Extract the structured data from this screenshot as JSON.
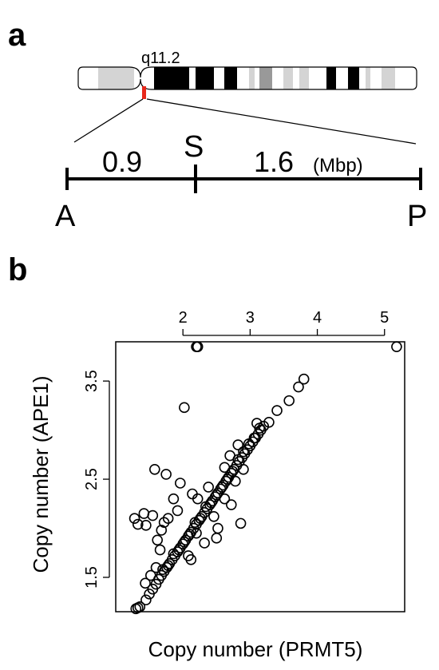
{
  "panel_a": {
    "letter": "a",
    "band_label": "q11.2",
    "segment_left": "0.9",
    "segment_right": "1.6",
    "unit": "(Mbp)",
    "mark_center": "S",
    "end_left": "A",
    "end_right": "P"
  },
  "panel_b": {
    "letter": "b"
  },
  "colors": {
    "highlight": "#e8281b",
    "band_black": "#000000",
    "band_gray": "#999999",
    "band_light": "#d4d4d4"
  },
  "chart_data": {
    "type": "scatter",
    "xlabel": "Copy number (PRMT5)",
    "ylabel": "Copy number (APE1)",
    "xlim": [
      1.0,
      5.3
    ],
    "ylim": [
      1.15,
      3.9
    ],
    "x_ticks": [
      "2",
      "3",
      "4",
      "5"
    ],
    "x_tick_values": [
      2,
      3,
      4,
      5
    ],
    "y_ticks": [
      "1.5",
      "2.5",
      "3.5"
    ],
    "y_tick_values": [
      1.5,
      2.5,
      3.5
    ],
    "x_axis_position": "top",
    "marker": "open-circle",
    "grid": false,
    "points": [
      [
        1.3,
        1.18
      ],
      [
        1.33,
        1.19
      ],
      [
        1.36,
        1.2
      ],
      [
        1.45,
        1.27
      ],
      [
        1.5,
        1.33
      ],
      [
        1.55,
        1.38
      ],
      [
        1.6,
        1.43
      ],
      [
        1.64,
        1.48
      ],
      [
        1.68,
        1.52
      ],
      [
        1.72,
        1.56
      ],
      [
        1.76,
        1.6
      ],
      [
        1.8,
        1.64
      ],
      [
        1.84,
        1.68
      ],
      [
        1.88,
        1.72
      ],
      [
        1.92,
        1.76
      ],
      [
        1.96,
        1.8
      ],
      [
        2.0,
        1.84
      ],
      [
        2.04,
        1.88
      ],
      [
        2.08,
        1.92
      ],
      [
        2.12,
        1.96
      ],
      [
        2.16,
        2.0
      ],
      [
        2.2,
        2.04
      ],
      [
        2.24,
        2.08
      ],
      [
        2.28,
        2.12
      ],
      [
        2.32,
        2.16
      ],
      [
        2.36,
        2.2
      ],
      [
        2.4,
        2.24
      ],
      [
        2.44,
        2.28
      ],
      [
        2.48,
        2.32
      ],
      [
        2.52,
        2.36
      ],
      [
        2.56,
        2.4
      ],
      [
        2.6,
        2.44
      ],
      [
        2.64,
        2.48
      ],
      [
        2.68,
        2.52
      ],
      [
        2.72,
        2.56
      ],
      [
        2.76,
        2.6
      ],
      [
        2.8,
        2.64
      ],
      [
        2.84,
        2.68
      ],
      [
        2.88,
        2.72
      ],
      [
        2.92,
        2.76
      ],
      [
        2.96,
        2.8
      ],
      [
        3.0,
        2.84
      ],
      [
        3.04,
        2.88
      ],
      [
        3.08,
        2.92
      ],
      [
        3.12,
        2.96
      ],
      [
        3.16,
        3.0
      ],
      [
        3.2,
        3.04
      ],
      [
        1.7,
        1.58
      ],
      [
        1.78,
        1.62
      ],
      [
        1.86,
        1.74
      ],
      [
        1.94,
        1.78
      ],
      [
        2.02,
        1.86
      ],
      [
        2.1,
        1.94
      ],
      [
        2.18,
        2.06
      ],
      [
        2.26,
        2.1
      ],
      [
        2.34,
        2.22
      ],
      [
        2.42,
        2.26
      ],
      [
        2.5,
        2.34
      ],
      [
        2.58,
        2.42
      ],
      [
        2.66,
        2.5
      ],
      [
        2.74,
        2.58
      ],
      [
        2.82,
        2.7
      ],
      [
        2.9,
        2.78
      ],
      [
        2.98,
        2.86
      ],
      [
        3.06,
        2.92
      ],
      [
        3.14,
        3.02
      ],
      [
        3.28,
        3.08
      ],
      [
        3.4,
        3.2
      ],
      [
        3.58,
        3.3
      ],
      [
        3.72,
        3.44
      ],
      [
        3.8,
        3.52
      ],
      [
        2.02,
        3.23
      ],
      [
        1.58,
        2.6
      ],
      [
        1.75,
        2.55
      ],
      [
        1.96,
        2.46
      ],
      [
        1.28,
        2.1
      ],
      [
        1.42,
        2.15
      ],
      [
        1.55,
        2.13
      ],
      [
        1.33,
        2.04
      ],
      [
        1.45,
        2.03
      ],
      [
        1.68,
        1.98
      ],
      [
        1.72,
        2.06
      ],
      [
        1.78,
        2.1
      ],
      [
        1.62,
        1.88
      ],
      [
        1.66,
        1.78
      ],
      [
        2.08,
        1.72
      ],
      [
        2.12,
        1.68
      ],
      [
        2.5,
        1.9
      ],
      [
        2.46,
        2.12
      ],
      [
        2.62,
        2.3
      ],
      [
        2.72,
        2.24
      ],
      [
        2.86,
        2.05
      ],
      [
        2.78,
        2.48
      ],
      [
        2.9,
        2.6
      ],
      [
        2.52,
        2.0
      ],
      [
        2.32,
        1.85
      ],
      [
        2.2,
        1.95
      ],
      [
        2.22,
        2.3
      ],
      [
        2.14,
        2.35
      ],
      [
        2.38,
        2.42
      ],
      [
        1.6,
        1.6
      ],
      [
        1.52,
        1.52
      ],
      [
        1.44,
        1.44
      ],
      [
        1.86,
        2.3
      ],
      [
        1.92,
        2.18
      ],
      [
        2.62,
        2.62
      ],
      [
        2.7,
        2.74
      ],
      [
        2.82,
        2.85
      ],
      [
        3.1,
        3.07
      ],
      [
        2.2,
        3.85
      ],
      [
        2.22,
        3.85
      ],
      [
        5.18,
        3.85
      ]
    ]
  }
}
